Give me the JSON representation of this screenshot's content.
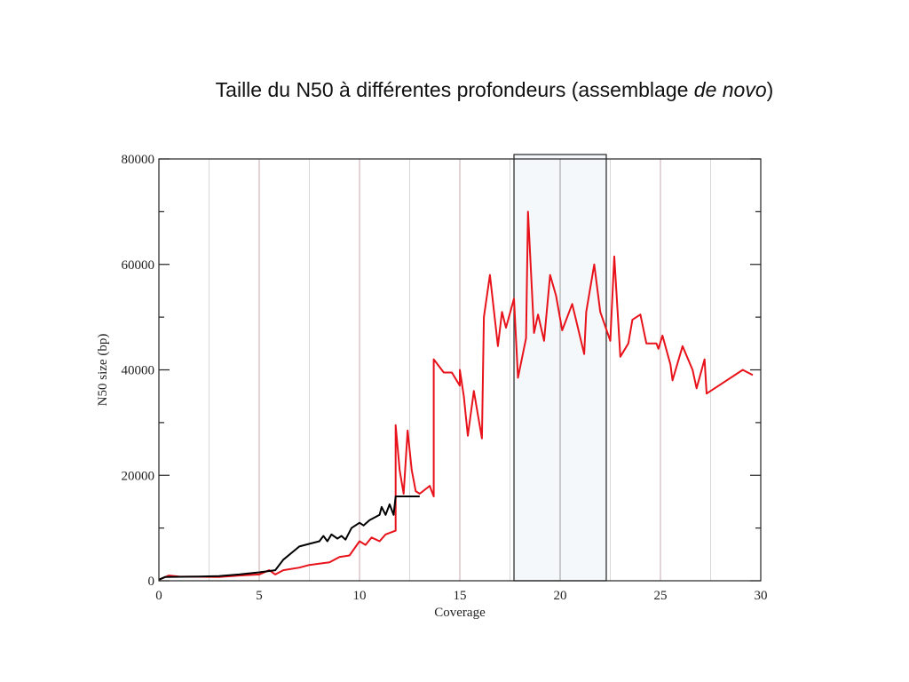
{
  "title": {
    "main": "Taille du N50 à différentes profondeurs (assemblage ",
    "italic": "de novo",
    "close": ")"
  },
  "colors": {
    "red_series": "#e8121a",
    "black_series": "#000000",
    "highlight_fill": "#f4f8fb",
    "grid_major": "#c9a9ad",
    "grid_minor": "#d8d8d8"
  },
  "chart_data": {
    "type": "line",
    "title": "Taille du N50 à différentes profondeurs (assemblage de novo)",
    "xlabel": "Coverage",
    "ylabel": "N50 size (bp)",
    "xlim": [
      0,
      30
    ],
    "ylim": [
      0,
      80000
    ],
    "x_ticks": [
      "0",
      "5",
      "10",
      "15",
      "20",
      "25",
      "30"
    ],
    "y_ticks": [
      "0",
      "20000",
      "40000",
      "60000",
      "80000"
    ],
    "grid": "vertical lines every 2.5",
    "highlight_region": {
      "x_start": 17.7,
      "x_end": 22.3
    },
    "series": [
      {
        "name": "red",
        "color": "#e8121a",
        "points": [
          [
            0,
            200
          ],
          [
            0.5,
            1000
          ],
          [
            1,
            800
          ],
          [
            3,
            700
          ],
          [
            4,
            1000
          ],
          [
            5,
            1200
          ],
          [
            5.5,
            2000
          ],
          [
            5.8,
            1200
          ],
          [
            6.2,
            2000
          ],
          [
            7,
            2500
          ],
          [
            7.5,
            3000
          ],
          [
            8.5,
            3500
          ],
          [
            9,
            4500
          ],
          [
            9.5,
            4800
          ],
          [
            10,
            7500
          ],
          [
            10.3,
            6800
          ],
          [
            10.6,
            8200
          ],
          [
            11,
            7500
          ],
          [
            11.3,
            8800
          ],
          [
            11.8,
            9500
          ],
          [
            11.8,
            29500
          ],
          [
            12,
            21000
          ],
          [
            12.2,
            16500
          ],
          [
            12.4,
            28500
          ],
          [
            12.6,
            21000
          ],
          [
            12.8,
            17000
          ],
          [
            13,
            16500
          ],
          [
            13.5,
            18000
          ],
          [
            13.7,
            16000
          ],
          [
            13.7,
            42000
          ],
          [
            14.2,
            39500
          ],
          [
            14.6,
            39500
          ],
          [
            15.0,
            37000
          ],
          [
            15.0,
            40000
          ],
          [
            15.2,
            35000
          ],
          [
            15.4,
            27500
          ],
          [
            15.7,
            36000
          ],
          [
            16.1,
            27000
          ],
          [
            16.2,
            50000
          ],
          [
            16.5,
            58000
          ],
          [
            16.9,
            44500
          ],
          [
            17.1,
            51000
          ],
          [
            17.3,
            48000
          ],
          [
            17.7,
            53500
          ],
          [
            17.9,
            38500
          ],
          [
            18.3,
            46000
          ],
          [
            18.4,
            70000
          ],
          [
            18.7,
            47000
          ],
          [
            18.9,
            50500
          ],
          [
            19.2,
            45500
          ],
          [
            19.5,
            58000
          ],
          [
            19.8,
            54000
          ],
          [
            20.1,
            47500
          ],
          [
            20.6,
            52500
          ],
          [
            21.2,
            43000
          ],
          [
            21.3,
            51000
          ],
          [
            21.7,
            60000
          ],
          [
            22.0,
            51000
          ],
          [
            22.5,
            45500
          ],
          [
            22.7,
            61500
          ],
          [
            23.0,
            42500
          ],
          [
            23.4,
            45000
          ],
          [
            23.6,
            49500
          ],
          [
            24.0,
            50500
          ],
          [
            24.3,
            45000
          ],
          [
            24.8,
            45000
          ],
          [
            24.9,
            44000
          ],
          [
            25.1,
            46500
          ],
          [
            25.5,
            41000
          ],
          [
            25.6,
            38000
          ],
          [
            26.1,
            44500
          ],
          [
            26.6,
            40000
          ],
          [
            26.8,
            36500
          ],
          [
            27.2,
            42000
          ],
          [
            27.3,
            35500
          ],
          [
            27.7,
            36500
          ],
          [
            29.1,
            40000
          ],
          [
            29.6,
            39000
          ]
        ]
      },
      {
        "name": "black",
        "color": "#000000",
        "points": [
          [
            0,
            200
          ],
          [
            0.3,
            700
          ],
          [
            2,
            800
          ],
          [
            3,
            900
          ],
          [
            4,
            1200
          ],
          [
            5,
            1600
          ],
          [
            5.8,
            2000
          ],
          [
            6.2,
            4000
          ],
          [
            7,
            6500
          ],
          [
            7.5,
            7000
          ],
          [
            8,
            7500
          ],
          [
            8.2,
            8500
          ],
          [
            8.4,
            7500
          ],
          [
            8.6,
            8800
          ],
          [
            8.9,
            8000
          ],
          [
            9.1,
            8500
          ],
          [
            9.3,
            7800
          ],
          [
            9.6,
            10000
          ],
          [
            10,
            11000
          ],
          [
            10.2,
            10500
          ],
          [
            10.5,
            11500
          ],
          [
            11,
            12500
          ],
          [
            11.1,
            14000
          ],
          [
            11.3,
            12500
          ],
          [
            11.5,
            14500
          ],
          [
            11.7,
            12500
          ],
          [
            11.8,
            16000
          ],
          [
            12.5,
            16000
          ],
          [
            13,
            16000
          ]
        ]
      }
    ]
  }
}
